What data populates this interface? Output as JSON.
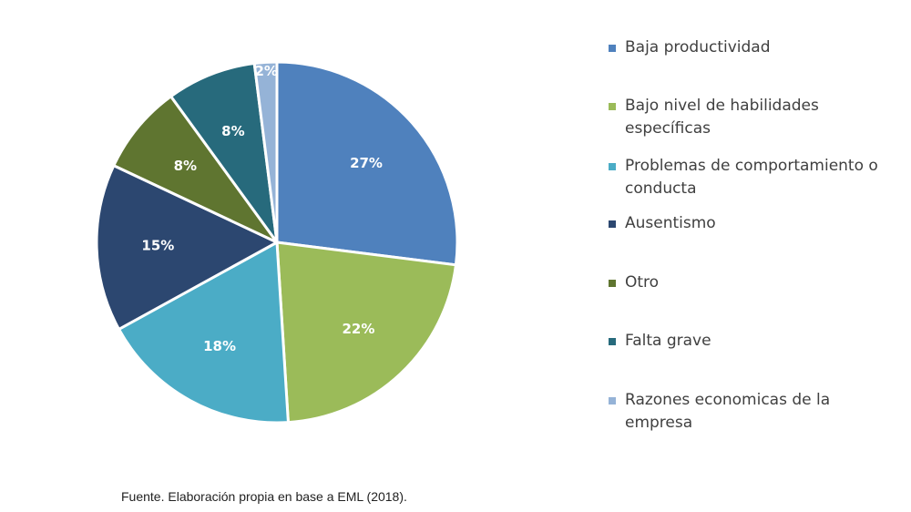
{
  "chart_data": {
    "type": "pie",
    "start_angle_deg": 0,
    "direction": "clockwise",
    "slices": [
      {
        "label": "Baja productividad",
        "value": 27,
        "value_label": "27%",
        "color": "#4f81bd"
      },
      {
        "label": "Bajo nivel de habilidades específicas",
        "value": 22,
        "value_label": "22%",
        "color": "#9bbb59"
      },
      {
        "label": "Problemas de comportamiento o conducta",
        "value": 18,
        "value_label": "18%",
        "color": "#4bacc6"
      },
      {
        "label": "Ausentismo",
        "value": 15,
        "value_label": "15%",
        "color": "#2c4770"
      },
      {
        "label": "Otro",
        "value": 8,
        "value_label": "8%",
        "color": "#5f7530"
      },
      {
        "label": "Falta grave",
        "value": 8,
        "value_label": "8%",
        "color": "#276a7c"
      },
      {
        "label": "Razones economicas de la empresa",
        "value": 2,
        "value_label": "2%",
        "color": "#95b3d7"
      }
    ],
    "legend_placement": "right"
  },
  "source": "Fuente. Elaboración propia en base a EML (2018)."
}
